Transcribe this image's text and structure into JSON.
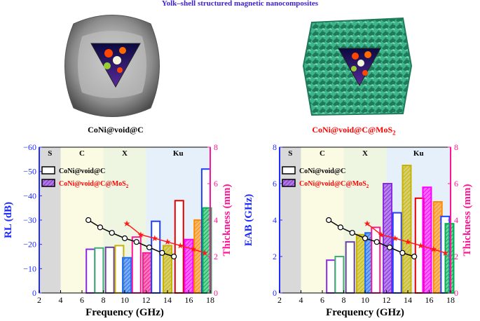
{
  "figure_title": "Yolk–shell structured magnetic nanocomposites",
  "captions": {
    "left": "CoNi@void@C",
    "right_main": "CoNi@void@C@MoS",
    "right_sub": "2"
  },
  "colors": {
    "title": "#3a1fd0",
    "left_axis": "#1f2bff",
    "right_axis": "#ff1493",
    "band_S": "#d9d9d9",
    "band_C": "#fbfbe4",
    "band_X": "#eef6e2",
    "band_Ku": "#e6f0fb",
    "bar_colors": [
      "#8a2be2",
      "#3cb371",
      "#6a3fa0",
      "#c8b400",
      "#1f6fff",
      "#ff1493",
      "#ff1493",
      "#e60000",
      "#ff00ff",
      "#ff8c00",
      "#1f3fff",
      "#00b050"
    ]
  },
  "chart_data": [
    {
      "type": "bar",
      "ylabel": "RL (dB)",
      "y2label": "Thickness (mm)",
      "xlabel": "Frequency (GHz)",
      "xlim": [
        2,
        18
      ],
      "ylim": [
        -60,
        0
      ],
      "y_inverted": true,
      "y2lim": [
        0,
        8
      ],
      "xticks": [
        "2",
        "4",
        "6",
        "8",
        "10",
        "12",
        "14",
        "16",
        "18"
      ],
      "yticks": [
        "0",
        "−10",
        "−20",
        "−30",
        "−40",
        "−50",
        "−60"
      ],
      "y2ticks": [
        "0",
        "2",
        "4",
        "6",
        "8"
      ],
      "bands": [
        {
          "label": "S",
          "from": 2,
          "to": 4
        },
        {
          "label": "C",
          "from": 4,
          "to": 8
        },
        {
          "label": "X",
          "from": 8,
          "to": 12
        },
        {
          "label": "Ku",
          "from": 12,
          "to": 18
        }
      ],
      "legend": [
        "CoNi@void@C",
        "CoNi@void@C@MoS2"
      ],
      "legend_sub": "2",
      "bars": [
        {
          "x": 6.8,
          "value": -18,
          "material": "CoNi@void@C",
          "color_index": 0
        },
        {
          "x": 7.6,
          "value": -18.5,
          "material": "CoNi@void@C",
          "color_index": 1
        },
        {
          "x": 8.6,
          "value": -18.8,
          "material": "CoNi@void@C",
          "color_index": 2
        },
        {
          "x": 9.5,
          "value": -19.5,
          "material": "CoNi@void@C",
          "color_index": 3
        },
        {
          "x": 10.2,
          "value": -14.5,
          "material": "CoNi@void@C@MoS2",
          "color_index": 4
        },
        {
          "x": 11.1,
          "value": -23,
          "material": "CoNi@void@C",
          "color_index": 5
        },
        {
          "x": 12.1,
          "value": -16.5,
          "material": "CoNi@void@C@MoS2",
          "color_index": 6
        },
        {
          "x": 12.9,
          "value": -29.5,
          "material": "CoNi@void@C",
          "color_index": 10
        },
        {
          "x": 14.0,
          "value": -19.5,
          "material": "CoNi@void@C@MoS2",
          "color_index": 3
        },
        {
          "x": 15.1,
          "value": -38,
          "material": "CoNi@void@C",
          "color_index": 7
        },
        {
          "x": 16.0,
          "value": -22,
          "material": "CoNi@void@C@MoS2",
          "color_index": 8
        },
        {
          "x": 16.9,
          "value": -30,
          "material": "CoNi@void@C@MoS2",
          "color_index": 9
        },
        {
          "x": 17.6,
          "value": -51,
          "material": "CoNi@void@C",
          "color_index": 10
        },
        {
          "x": 17.7,
          "value": -35,
          "material": "CoNi@void@C@MoS2",
          "color_index": 11
        }
      ],
      "thickness_series": [
        {
          "name": "CoNi@void@C",
          "x": [
            6.6,
            7.7,
            8.8,
            10.0,
            11.1,
            12.3,
            13.5,
            14.6
          ],
          "y": [
            4.0,
            3.6,
            3.3,
            3.0,
            2.8,
            2.5,
            2.2,
            2.0
          ]
        },
        {
          "name": "CoNi@void@C@MoS2",
          "x": [
            10.2,
            11.5,
            12.8,
            14.0,
            15.2,
            16.4,
            17.5
          ],
          "y": [
            3.8,
            3.2,
            3.0,
            2.8,
            2.6,
            2.4,
            2.2
          ]
        }
      ]
    },
    {
      "type": "bar",
      "ylabel": "EAB (GHz)",
      "y2label": "Thickness (mm)",
      "xlabel": "Frequency (GHz)",
      "xlim": [
        2,
        18
      ],
      "ylim": [
        0,
        8
      ],
      "y2lim": [
        0,
        8
      ],
      "xticks": [
        "2",
        "4",
        "6",
        "8",
        "10",
        "12",
        "14",
        "16",
        "18"
      ],
      "yticks": [
        "0",
        "2",
        "4",
        "6",
        "8"
      ],
      "y2ticks": [
        "0",
        "2",
        "4",
        "6",
        "8"
      ],
      "bands": [
        {
          "label": "S",
          "from": 2,
          "to": 4
        },
        {
          "label": "C",
          "from": 4,
          "to": 8
        },
        {
          "label": "X",
          "from": 8,
          "to": 12
        },
        {
          "label": "Ku",
          "from": 12,
          "to": 18
        }
      ],
      "legend": [
        "CoNi@void@C",
        "CoNi@void@C@MoS2"
      ],
      "legend_sub": "2",
      "bars": [
        {
          "x": 6.8,
          "value": 1.8,
          "material": "CoNi@void@C",
          "color_index": 0
        },
        {
          "x": 7.6,
          "value": 2.0,
          "material": "CoNi@void@C",
          "color_index": 1
        },
        {
          "x": 8.6,
          "value": 2.8,
          "material": "CoNi@void@C",
          "color_index": 2
        },
        {
          "x": 9.6,
          "value": 3.2,
          "material": "CoNi@void@C@MoS2",
          "color_index": 3
        },
        {
          "x": 10.4,
          "value": 3.3,
          "material": "CoNi@void@C@MoS2",
          "color_index": 4
        },
        {
          "x": 11.0,
          "value": 3.6,
          "material": "CoNi@void@C",
          "color_index": 5
        },
        {
          "x": 12.1,
          "value": 6.0,
          "material": "CoNi@void@C@MoS2",
          "color_index": 0
        },
        {
          "x": 13.0,
          "value": 4.4,
          "material": "CoNi@void@C",
          "color_index": 10
        },
        {
          "x": 13.9,
          "value": 7.0,
          "material": "CoNi@void@C@MoS2",
          "color_index": 3
        },
        {
          "x": 15.1,
          "value": 5.2,
          "material": "CoNi@void@C",
          "color_index": 7
        },
        {
          "x": 15.8,
          "value": 5.8,
          "material": "CoNi@void@C@MoS2",
          "color_index": 8
        },
        {
          "x": 16.8,
          "value": 5.0,
          "material": "CoNi@void@C@MoS2",
          "color_index": 9
        },
        {
          "x": 17.5,
          "value": 4.2,
          "material": "CoNi@void@C",
          "color_index": 10
        },
        {
          "x": 17.9,
          "value": 3.8,
          "material": "CoNi@void@C@MoS2",
          "color_index": 11
        }
      ],
      "thickness_series": [
        {
          "name": "CoNi@void@C",
          "x": [
            6.6,
            7.7,
            8.8,
            10.0,
            11.1,
            12.3,
            13.5,
            14.6
          ],
          "y": [
            4.0,
            3.6,
            3.3,
            3.0,
            2.8,
            2.5,
            2.2,
            2.0
          ]
        },
        {
          "name": "CoNi@void@C@MoS2",
          "x": [
            10.2,
            11.5,
            12.8,
            14.0,
            15.2,
            16.4,
            17.5
          ],
          "y": [
            3.8,
            3.2,
            3.0,
            2.8,
            2.6,
            2.4,
            2.2
          ]
        }
      ]
    }
  ]
}
